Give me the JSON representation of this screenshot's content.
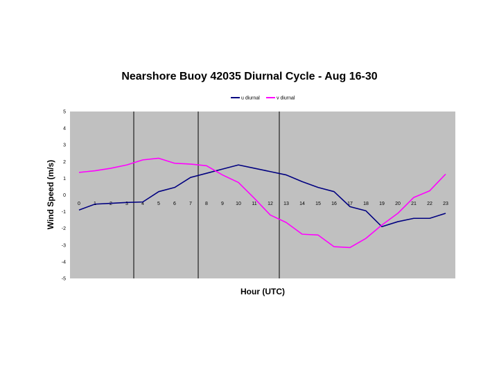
{
  "chart_data": {
    "type": "line",
    "title": "Nearshore Buoy 42035 Diurnal Cycle - Aug 16-30",
    "xlabel": "Hour (UTC)",
    "ylabel": "Wind Speed (m/s)",
    "ylim": [
      -5,
      5
    ],
    "y_ticks": [
      "5",
      "4",
      "3",
      "2",
      "1",
      "0",
      "-1",
      "-2",
      "-3",
      "-4",
      "-5"
    ],
    "x": [
      0,
      1,
      2,
      3,
      4,
      5,
      6,
      7,
      8,
      9,
      10,
      11,
      12,
      13,
      14,
      15,
      16,
      17,
      18,
      19,
      20,
      21,
      22,
      23
    ],
    "x_tick_labels": [
      "0",
      "1",
      "2",
      "3",
      "4",
      "5",
      "6",
      "7",
      "8",
      "9",
      "10",
      "11",
      "12",
      "13",
      "14",
      "15",
      "16",
      "17",
      "18",
      "19",
      "20",
      "21",
      "22",
      "23"
    ],
    "grid": false,
    "legend_position": "top",
    "plot_background": "#c0c0c0",
    "series": [
      {
        "name": "u diurnal",
        "color": "#000080",
        "values": [
          -0.9,
          -0.55,
          -0.5,
          -0.45,
          -0.42,
          0.2,
          0.45,
          1.05,
          1.3,
          1.55,
          1.8,
          1.6,
          1.4,
          1.2,
          0.8,
          0.45,
          0.2,
          -0.7,
          -0.95,
          -1.9,
          -1.6,
          -1.4,
          -1.4,
          -1.1
        ]
      },
      {
        "name": "v diurnal",
        "color": "#ff00ff",
        "values": [
          1.35,
          1.45,
          1.6,
          1.8,
          2.1,
          2.2,
          1.9,
          1.85,
          1.75,
          1.2,
          0.75,
          -0.2,
          -1.2,
          -1.65,
          -2.35,
          -2.4,
          -3.1,
          -3.15,
          -2.6,
          -1.8,
          -1.1,
          -0.15,
          0.25,
          1.25
        ]
      }
    ]
  }
}
